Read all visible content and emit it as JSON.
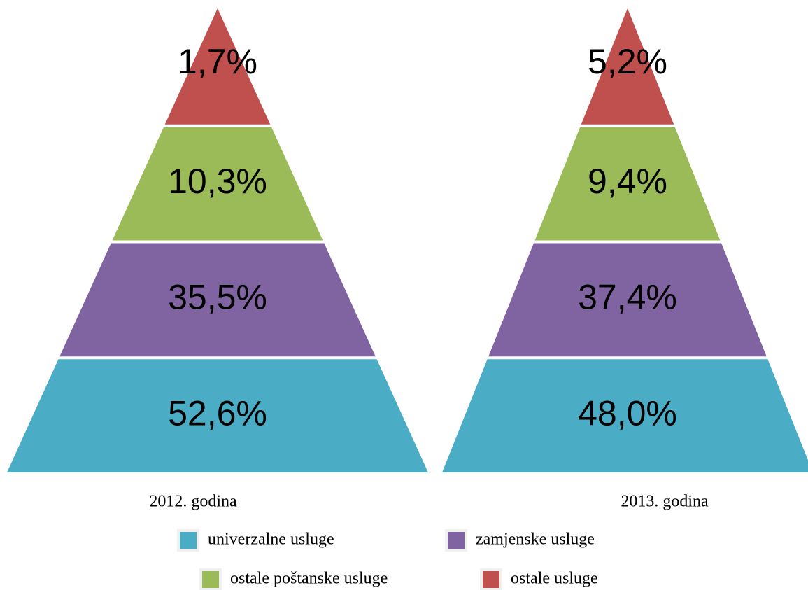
{
  "chart_data": [
    {
      "type": "pyramid",
      "title": "2012. godina",
      "categories": [
        "univerzalne usluge",
        "zamjenske usluge",
        "ostale poštanske usluge",
        "ostale usluge"
      ],
      "values": [
        52.6,
        35.5,
        10.3,
        1.7
      ],
      "value_labels": [
        "52,6%",
        "35,5%",
        "10,3%",
        "1,7%"
      ],
      "colors": [
        "#4bacc6",
        "#8064a2",
        "#9bbb59",
        "#c0504d"
      ]
    },
    {
      "type": "pyramid",
      "title": "2013. godina",
      "categories": [
        "univerzalne usluge",
        "zamjenske usluge",
        "ostale poštanske usluge",
        "ostale usluge"
      ],
      "values": [
        48.0,
        37.4,
        9.4,
        5.2
      ],
      "value_labels": [
        "48,0%",
        "37,4%",
        "9,4%",
        "5,2%"
      ],
      "colors": [
        "#4bacc6",
        "#8064a2",
        "#9bbb59",
        "#c0504d"
      ]
    }
  ]
}
